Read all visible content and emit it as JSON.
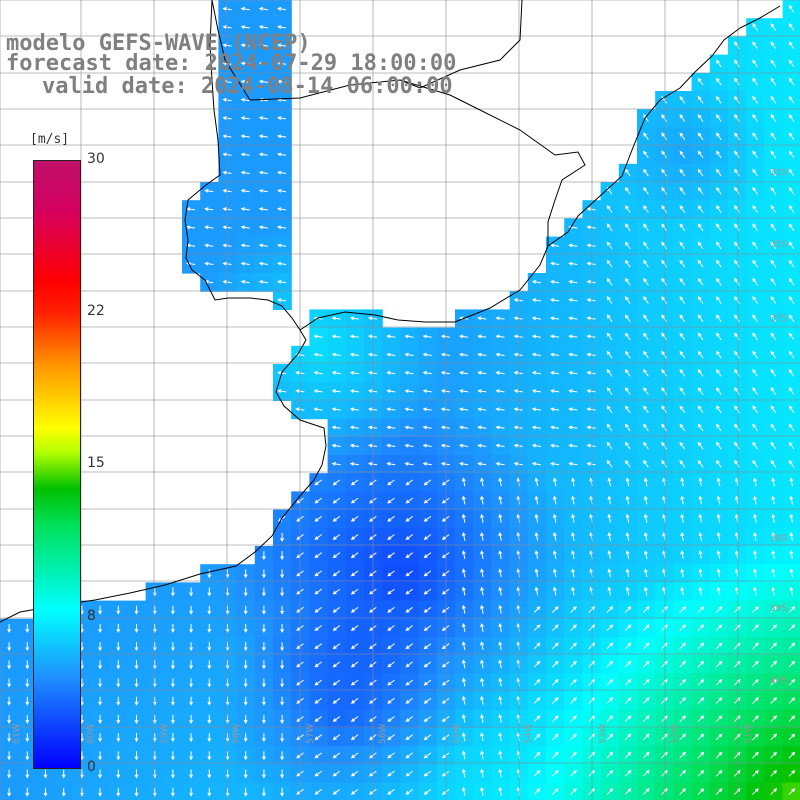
{
  "title": {
    "line1": "modelo GEFS-WAVE (NCEP)",
    "line2": "forecast date: 2024-07-29 18:00:00",
    "line3": "valid date: 2024-08-14 06:00:00"
  },
  "colorbar": {
    "units": "[m/s]",
    "ticks": [
      "30",
      "22",
      "15",
      "8",
      "0"
    ],
    "tick_values": [
      30,
      22,
      15,
      8,
      0
    ],
    "range": [
      0,
      30
    ],
    "colors": [
      "#0000ff",
      "#1e90ff",
      "#00ffff",
      "#00c000",
      "#ffff00",
      "#ff9900",
      "#ff0000",
      "#c0106a"
    ]
  },
  "map": {
    "land_color": "#ffffff",
    "coast_color": "#000000",
    "grid_color": "#888888",
    "arrow_color": "#ffffff",
    "lat_labels": [
      "33S",
      "35S",
      "37S",
      "38S",
      "39S",
      "40S"
    ],
    "lon_labels": [
      "61W",
      "60W",
      "59W",
      "58W",
      "57W",
      "56W",
      "55W",
      "54W",
      "53W",
      "52W",
      "51W"
    ]
  }
}
